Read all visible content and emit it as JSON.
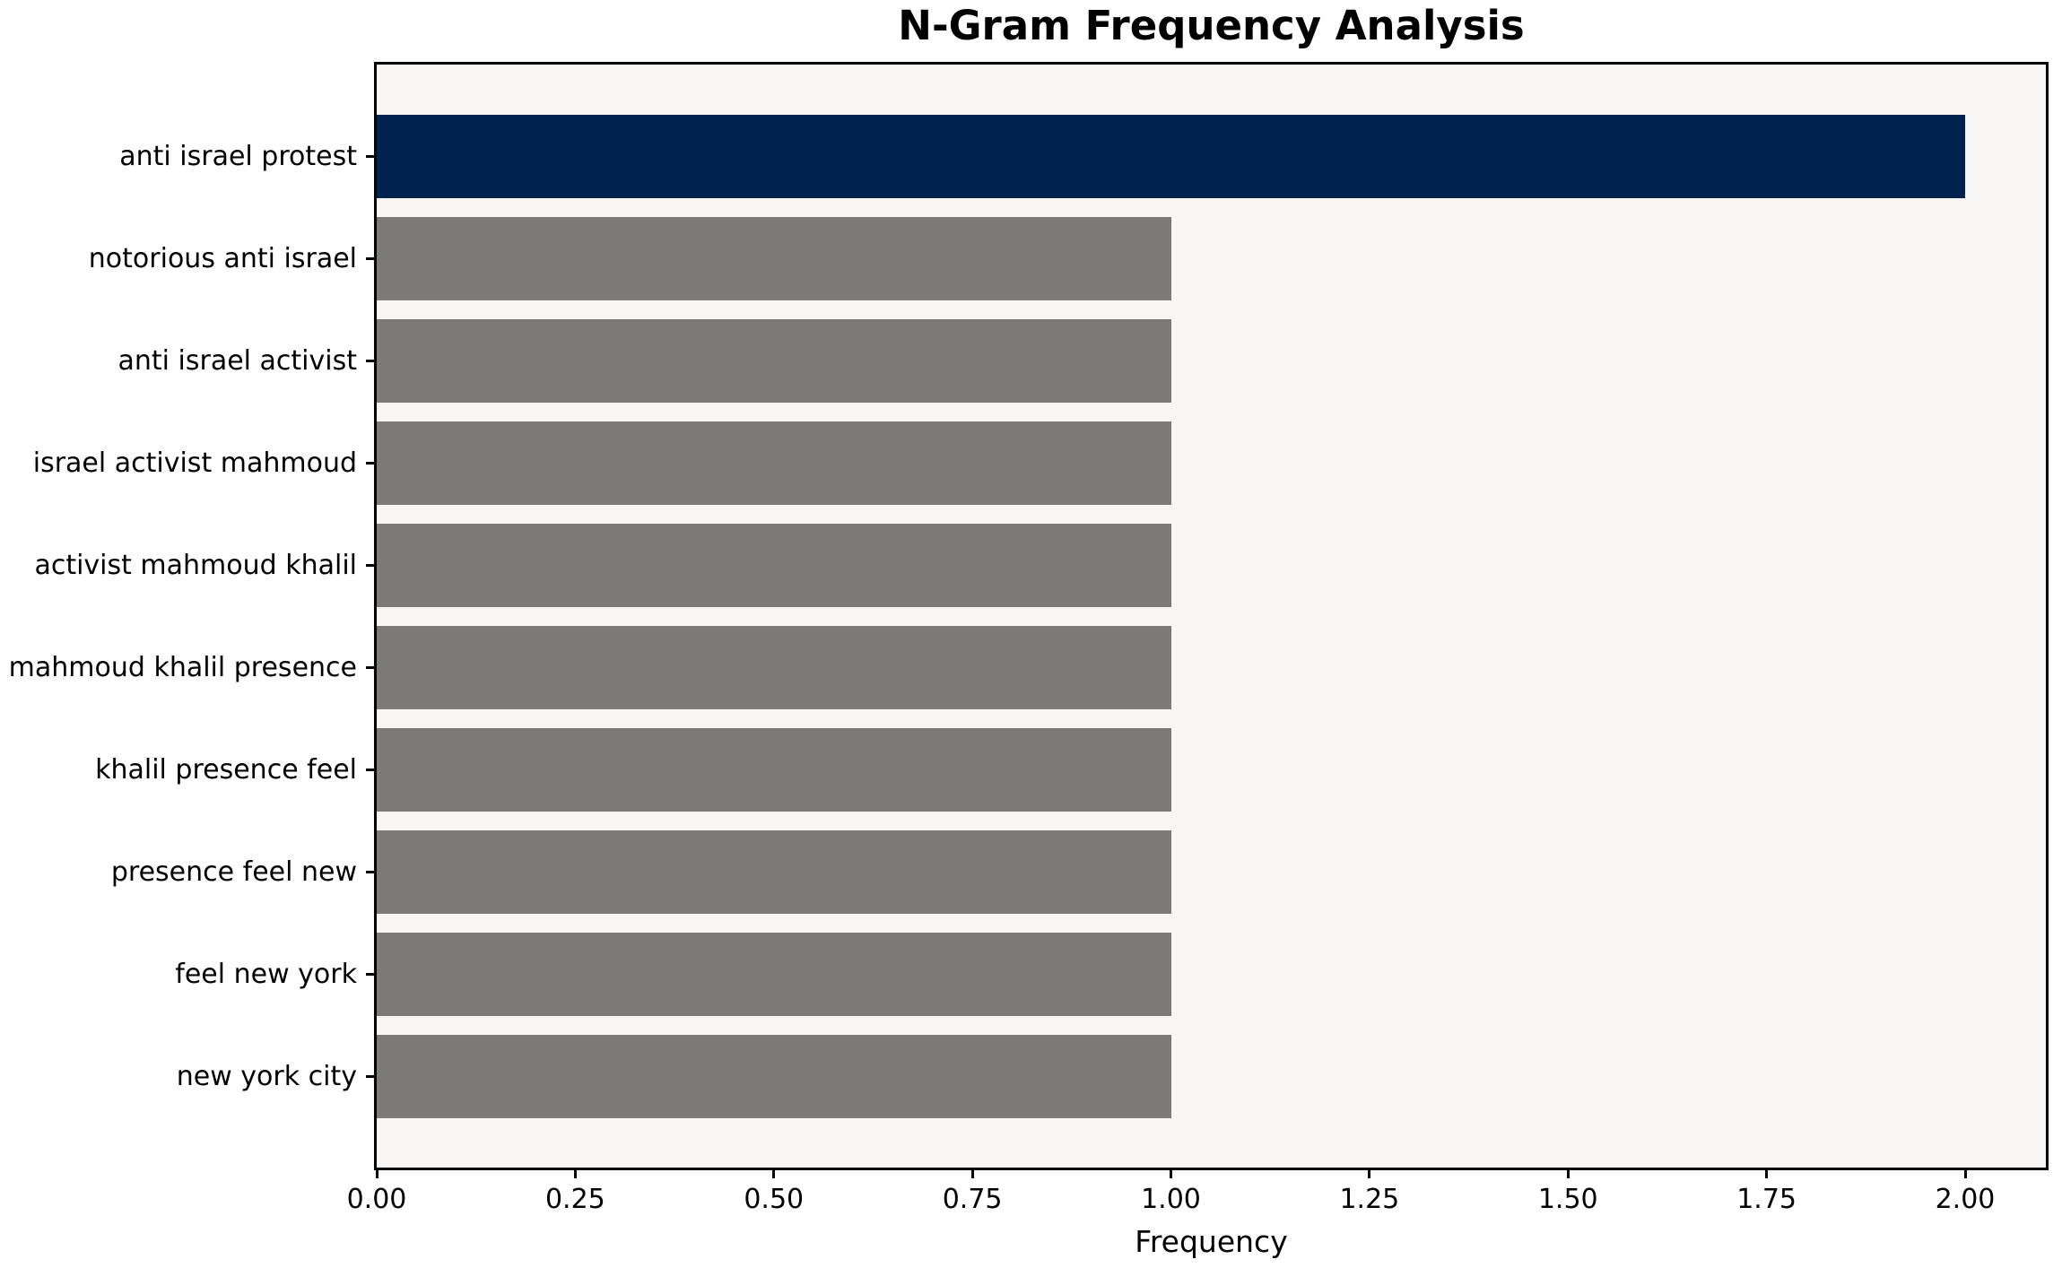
{
  "chart_data": {
    "type": "bar",
    "orientation": "horizontal",
    "title": "N-Gram Frequency Analysis",
    "xlabel": "Frequency",
    "ylabel": "",
    "categories": [
      "anti israel protest",
      "notorious anti israel",
      "anti israel activist",
      "israel activist mahmoud",
      "activist mahmoud khalil",
      "mahmoud khalil presence",
      "khalil presence feel",
      "presence feel new",
      "feel new york",
      "new york city"
    ],
    "values": [
      2,
      1,
      1,
      1,
      1,
      1,
      1,
      1,
      1,
      1
    ],
    "bar_colors": [
      "#00234e",
      "#7b7a76",
      "#7b7a76",
      "#7b7a76",
      "#7b7a76",
      "#7b7a76",
      "#7b7a76",
      "#7b7a76",
      "#7b7a76",
      "#7b7a76"
    ],
    "xlim": [
      0,
      2.1
    ],
    "xticks": [
      0,
      0.25,
      0.5,
      0.75,
      1.0,
      1.25,
      1.5,
      1.75,
      2.0
    ],
    "xtick_labels": [
      "0.00",
      "0.25",
      "0.50",
      "0.75",
      "1.00",
      "1.25",
      "1.50",
      "1.75",
      "2.00"
    ],
    "grid": false,
    "legend": false,
    "colors": {
      "highlight": "#00234e",
      "default_bar": "#7b7a76",
      "plot_background": "#f7f6f4",
      "figure_background": "#ffffff",
      "axis": "#000000",
      "text": "#000000"
    }
  }
}
